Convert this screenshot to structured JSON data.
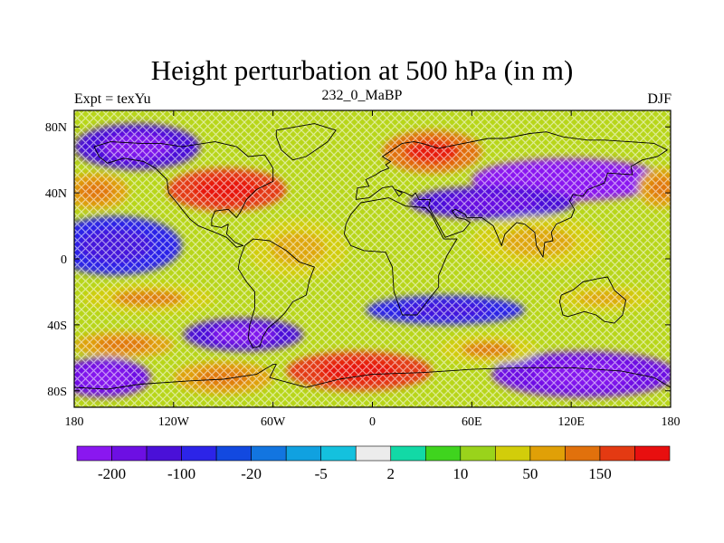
{
  "title": "Height perturbation at 500 hPa (in m)",
  "subtitle_left": "Expt = texYu",
  "subtitle_center": "232_0_MaBP",
  "subtitle_right": "DJF",
  "map": {
    "projection": "cylindrical-equidistant",
    "lon_range": [
      -180,
      180
    ],
    "lat_range": [
      -90,
      90
    ],
    "x_ticks": [
      {
        "value": -180,
        "label": "180"
      },
      {
        "value": -120,
        "label": "120W"
      },
      {
        "value": -60,
        "label": "60W"
      },
      {
        "value": 0,
        "label": "0"
      },
      {
        "value": 60,
        "label": "60E"
      },
      {
        "value": 120,
        "label": "120E"
      },
      {
        "value": 180,
        "label": "180"
      }
    ],
    "y_ticks": [
      {
        "value": 80,
        "label": "80N"
      },
      {
        "value": 40,
        "label": "40N"
      },
      {
        "value": 0,
        "label": "0"
      },
      {
        "value": -40,
        "label": "40S"
      },
      {
        "value": -80,
        "label": "80S"
      }
    ],
    "field_features": [
      {
        "lon": -142,
        "lat": 68,
        "value": -150,
        "rx": 38,
        "ry": 14
      },
      {
        "lon": -167,
        "lat": 41,
        "value": 80,
        "rx": 20,
        "ry": 11
      },
      {
        "lon": -88,
        "lat": 42,
        "value": 160,
        "rx": 36,
        "ry": 13
      },
      {
        "lon": 36,
        "lat": 65,
        "value": 140,
        "rx": 30,
        "ry": 13
      },
      {
        "lon": 118,
        "lat": 48,
        "value": -210,
        "rx": 58,
        "ry": 13
      },
      {
        "lon": 72,
        "lat": 34,
        "value": -120,
        "rx": 50,
        "ry": 10
      },
      {
        "lon": 174,
        "lat": 43,
        "value": 70,
        "rx": 14,
        "ry": 12
      },
      {
        "lon": -155,
        "lat": 8,
        "value": -70,
        "rx": 40,
        "ry": 18
      },
      {
        "lon": -45,
        "lat": 6,
        "value": 25,
        "rx": 30,
        "ry": 18
      },
      {
        "lon": 100,
        "lat": 10,
        "value": 25,
        "rx": 40,
        "ry": 16
      },
      {
        "lon": -135,
        "lat": -24,
        "value": 40,
        "rx": 40,
        "ry": 9
      },
      {
        "lon": 44,
        "lat": -31,
        "value": -80,
        "rx": 48,
        "ry": 9
      },
      {
        "lon": 140,
        "lat": -24,
        "value": 30,
        "rx": 30,
        "ry": 8
      },
      {
        "lon": -78,
        "lat": -46,
        "value": -150,
        "rx": 36,
        "ry": 10
      },
      {
        "lon": -150,
        "lat": -52,
        "value": 60,
        "rx": 30,
        "ry": 8
      },
      {
        "lon": -8,
        "lat": -68,
        "value": 170,
        "rx": 44,
        "ry": 12
      },
      {
        "lon": 128,
        "lat": -70,
        "value": -170,
        "rx": 56,
        "ry": 14
      },
      {
        "lon": -162,
        "lat": -72,
        "value": -160,
        "rx": 28,
        "ry": 12
      },
      {
        "lon": -90,
        "lat": -72,
        "value": 50,
        "rx": 30,
        "ry": 10
      },
      {
        "lon": 70,
        "lat": -55,
        "value": 40,
        "rx": 30,
        "ry": 9
      }
    ],
    "coastlines": [
      [
        [
          -58,
          78
        ],
        [
          -35,
          82
        ],
        [
          -22,
          78
        ],
        [
          -27,
          71
        ],
        [
          -40,
          62
        ],
        [
          -48,
          60
        ],
        [
          -55,
          66
        ],
        [
          -58,
          74
        ],
        [
          -58,
          78
        ]
      ],
      [
        [
          -65,
          63
        ],
        [
          -60,
          55
        ],
        [
          -60,
          47
        ],
        [
          -66,
          44
        ],
        [
          -70,
          42
        ],
        [
          -76,
          36
        ],
        [
          -80,
          28
        ],
        [
          -82,
          25
        ],
        [
          -87,
          30
        ],
        [
          -95,
          29
        ],
        [
          -97,
          24
        ],
        [
          -97,
          20
        ],
        [
          -91,
          19
        ],
        [
          -87,
          21
        ],
        [
          -88,
          15
        ],
        [
          -83,
          10
        ],
        [
          -78,
          8
        ],
        [
          -82,
          7
        ],
        [
          -88,
          13
        ],
        [
          -95,
          16
        ],
        [
          -105,
          20
        ],
        [
          -110,
          24
        ],
        [
          -115,
          30
        ],
        [
          -118,
          34
        ],
        [
          -123,
          40
        ],
        [
          -124,
          48
        ],
        [
          -131,
          55
        ],
        [
          -138,
          59
        ],
        [
          -150,
          61
        ],
        [
          -160,
          58
        ],
        [
          -165,
          62
        ],
        [
          -168,
          68
        ],
        [
          -158,
          71
        ],
        [
          -140,
          70
        ],
        [
          -128,
          70
        ],
        [
          -115,
          68
        ],
        [
          -95,
          71
        ],
        [
          -82,
          68
        ],
        [
          -75,
          62
        ],
        [
          -65,
          63
        ]
      ],
      [
        [
          -77,
          8
        ],
        [
          -72,
          12
        ],
        [
          -62,
          11
        ],
        [
          -52,
          5
        ],
        [
          -44,
          -2
        ],
        [
          -35,
          -5
        ],
        [
          -38,
          -13
        ],
        [
          -40,
          -22
        ],
        [
          -48,
          -26
        ],
        [
          -53,
          -33
        ],
        [
          -58,
          -38
        ],
        [
          -63,
          -42
        ],
        [
          -66,
          -47
        ],
        [
          -68,
          -53
        ],
        [
          -72,
          -54
        ],
        [
          -75,
          -48
        ],
        [
          -74,
          -40
        ],
        [
          -71,
          -30
        ],
        [
          -71,
          -20
        ],
        [
          -76,
          -14
        ],
        [
          -81,
          -6
        ],
        [
          -80,
          0
        ],
        [
          -77,
          8
        ]
      ],
      [
        [
          -17,
          15
        ],
        [
          -16,
          21
        ],
        [
          -13,
          27
        ],
        [
          -7,
          34
        ],
        [
          10,
          37
        ],
        [
          20,
          32
        ],
        [
          32,
          31
        ],
        [
          35,
          28
        ],
        [
          43,
          12
        ],
        [
          51,
          12
        ],
        [
          45,
          2
        ],
        [
          40,
          -10
        ],
        [
          40,
          -17
        ],
        [
          33,
          -26
        ],
        [
          27,
          -34
        ],
        [
          18,
          -34
        ],
        [
          13,
          -20
        ],
        [
          12,
          -5
        ],
        [
          8,
          4
        ],
        [
          -5,
          5
        ],
        [
          -13,
          8
        ],
        [
          -17,
          15
        ]
      ],
      [
        [
          -10,
          36
        ],
        [
          -9,
          43
        ],
        [
          -2,
          44
        ],
        [
          -4,
          48
        ],
        [
          2,
          51
        ],
        [
          5,
          53
        ],
        [
          10,
          55
        ],
        [
          8,
          57
        ],
        [
          11,
          59
        ],
        [
          6,
          62
        ],
        [
          12,
          66
        ],
        [
          18,
          70
        ],
        [
          25,
          71
        ],
        [
          30,
          70
        ],
        [
          40,
          67
        ],
        [
          45,
          68
        ],
        [
          55,
          70
        ],
        [
          70,
          73
        ],
        [
          80,
          73
        ],
        [
          95,
          76
        ],
        [
          105,
          77
        ],
        [
          115,
          74
        ],
        [
          130,
          72
        ],
        [
          140,
          72
        ],
        [
          155,
          71
        ],
        [
          170,
          70
        ],
        [
          178,
          66
        ],
        [
          172,
          62
        ],
        [
          163,
          60
        ],
        [
          156,
          56
        ],
        [
          157,
          51
        ],
        [
          142,
          52
        ],
        [
          140,
          46
        ],
        [
          130,
          42
        ],
        [
          127,
          38
        ],
        [
          121,
          39
        ],
        [
          119,
          35
        ],
        [
          122,
          30
        ],
        [
          120,
          25
        ],
        [
          111,
          21
        ],
        [
          108,
          16
        ],
        [
          109,
          11
        ],
        [
          104,
          10
        ],
        [
          103,
          1
        ],
        [
          99,
          8
        ],
        [
          98,
          16
        ],
        [
          92,
          21
        ],
        [
          87,
          22
        ],
        [
          80,
          15
        ],
        [
          78,
          8
        ],
        [
          73,
          20
        ],
        [
          66,
          25
        ],
        [
          57,
          25
        ],
        [
          56,
          27
        ],
        [
          50,
          30
        ],
        [
          48,
          29
        ],
        [
          51,
          25
        ],
        [
          56,
          24
        ],
        [
          59,
          22
        ],
        [
          55,
          17
        ],
        [
          44,
          13
        ],
        [
          36,
          28
        ],
        [
          34,
          32
        ],
        [
          35,
          36
        ],
        [
          28,
          36
        ],
        [
          26,
          40
        ],
        [
          24,
          38
        ],
        [
          20,
          40
        ],
        [
          14,
          42
        ],
        [
          18,
          40
        ],
        [
          16,
          38
        ],
        [
          12,
          44
        ],
        [
          6,
          43
        ],
        [
          -2,
          37
        ],
        [
          -10,
          36
        ]
      ],
      [
        [
          114,
          -22
        ],
        [
          121,
          -19
        ],
        [
          127,
          -14
        ],
        [
          136,
          -12
        ],
        [
          142,
          -11
        ],
        [
          146,
          -19
        ],
        [
          153,
          -25
        ],
        [
          151,
          -34
        ],
        [
          146,
          -39
        ],
        [
          140,
          -38
        ],
        [
          135,
          -34
        ],
        [
          128,
          -32
        ],
        [
          118,
          -35
        ],
        [
          115,
          -34
        ],
        [
          113,
          -26
        ],
        [
          114,
          -22
        ]
      ],
      [
        [
          -180,
          -78
        ],
        [
          -160,
          -79
        ],
        [
          -140,
          -76
        ],
        [
          -110,
          -74
        ],
        [
          -90,
          -73
        ],
        [
          -70,
          -70
        ],
        [
          -60,
          -64
        ],
        [
          -58,
          -64
        ],
        [
          -62,
          -72
        ],
        [
          -40,
          -78
        ],
        [
          -20,
          -73
        ],
        [
          0,
          -70
        ],
        [
          30,
          -69
        ],
        [
          60,
          -67
        ],
        [
          90,
          -66
        ],
        [
          120,
          -66
        ],
        [
          150,
          -68
        ],
        [
          170,
          -72
        ],
        [
          180,
          -78
        ]
      ]
    ]
  },
  "colorbar": {
    "colors": [
      "#8a17f0",
      "#6d0fe3",
      "#4a10d8",
      "#2c24e8",
      "#1249e0",
      "#1275e0",
      "#10a1e0",
      "#14c1de",
      "#ececec",
      "#12d9a6",
      "#3fd41e",
      "#9ad31b",
      "#d2cd0a",
      "#e0a007",
      "#e1710c",
      "#e43a12",
      "#e80f0f"
    ],
    "labels": [
      {
        "text": "-200",
        "boundary": 1
      },
      {
        "text": "-100",
        "boundary": 3
      },
      {
        "text": "-20",
        "boundary": 5
      },
      {
        "text": "-5",
        "boundary": 7
      },
      {
        "text": "2",
        "boundary": 9
      },
      {
        "text": "10",
        "boundary": 11
      },
      {
        "text": "50",
        "boundary": 13
      },
      {
        "text": "150",
        "boundary": 15
      }
    ],
    "levels": [
      -250,
      -200,
      -150,
      -100,
      -50,
      -20,
      -10,
      -5,
      -2,
      2,
      5,
      10,
      20,
      50,
      100,
      150,
      200
    ]
  }
}
